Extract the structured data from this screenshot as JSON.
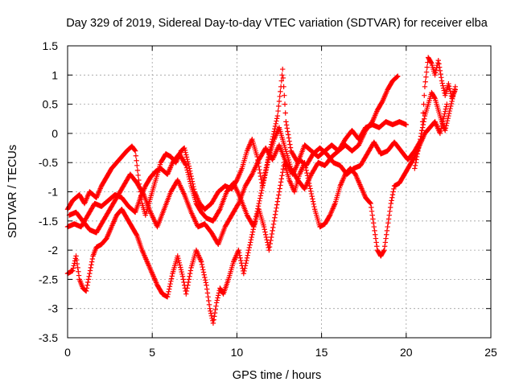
{
  "chart_data": {
    "type": "scatter",
    "title": "Day 329 of 2019, Sidereal Day-to-day VTEC variation (SDTVAR) for receiver elba",
    "xlabel": "GPS time / hours",
    "ylabel": "SDTVAR / TECUs",
    "xlim": [
      0,
      25
    ],
    "ylim": [
      -3.5,
      1.5
    ],
    "xticks": [
      0,
      5,
      10,
      15,
      20,
      25
    ],
    "xtick_labels": [
      "0",
      "5",
      "10",
      "15",
      "20",
      "25"
    ],
    "yticks": [
      -3.5,
      -3,
      -2.5,
      -2,
      -1.5,
      -1,
      -0.5,
      0,
      0.5,
      1,
      1.5
    ],
    "ytick_labels": [
      "-3.5",
      "-3",
      "-2.5",
      "-2",
      "-1.5",
      "-1",
      "-0.5",
      "0",
      "0.5",
      "1",
      "1.5"
    ],
    "grid": true,
    "marker": "+",
    "marker_color": "#ff0000",
    "series": [
      {
        "points": [
          [
            0.0,
            -1.3
          ],
          [
            0.3,
            -1.15
          ],
          [
            0.7,
            -1.05
          ],
          [
            1.0,
            -1.2
          ],
          [
            1.3,
            -1.0
          ],
          [
            1.7,
            -1.1
          ],
          [
            2.0,
            -0.9
          ],
          [
            2.3,
            -0.75
          ],
          [
            2.6,
            -0.6
          ],
          [
            2.9,
            -0.5
          ],
          [
            3.2,
            -0.4
          ],
          [
            3.5,
            -0.3
          ],
          [
            3.8,
            -0.22
          ],
          [
            4.0,
            -0.3
          ],
          [
            4.2,
            -0.8
          ],
          [
            4.4,
            -1.2
          ],
          [
            4.6,
            -1.4
          ],
          [
            4.9,
            -1.1
          ],
          [
            5.2,
            -0.8
          ],
          [
            5.5,
            -0.5
          ],
          [
            5.8,
            -0.35
          ],
          [
            6.1,
            -0.4
          ],
          [
            6.4,
            -0.5
          ],
          [
            6.7,
            -0.3
          ],
          [
            6.9,
            -0.25
          ],
          [
            7.2,
            -0.6
          ],
          [
            7.5,
            -1.0
          ],
          [
            7.8,
            -1.2
          ],
          [
            8.1,
            -1.3
          ],
          [
            8.5,
            -1.2
          ],
          [
            8.9,
            -1.0
          ],
          [
            9.3,
            -0.9
          ],
          [
            9.7,
            -0.95
          ],
          [
            10.0,
            -0.8
          ],
          [
            10.3,
            -0.6
          ],
          [
            10.6,
            -0.3
          ],
          [
            10.9,
            -0.1
          ],
          [
            11.2,
            -0.4
          ],
          [
            11.5,
            -0.9
          ],
          [
            11.8,
            -0.5
          ],
          [
            12.1,
            -0.1
          ],
          [
            12.4,
            0.3
          ],
          [
            12.6,
            0.8
          ],
          [
            12.7,
            1.1
          ],
          [
            12.9,
            0.2
          ],
          [
            13.2,
            -0.3
          ],
          [
            13.6,
            -0.5
          ],
          [
            14.0,
            -0.2
          ],
          [
            14.4,
            -0.3
          ],
          [
            14.8,
            -0.4
          ],
          [
            15.2,
            -0.3
          ],
          [
            15.6,
            -0.2
          ],
          [
            16.0,
            -0.3
          ],
          [
            16.4,
            -0.1
          ],
          [
            16.8,
            0.05
          ],
          [
            17.2,
            -0.1
          ],
          [
            17.6,
            0.1
          ],
          [
            18.0,
            0.15
          ],
          [
            18.4,
            0.1
          ],
          [
            18.8,
            0.2
          ],
          [
            19.2,
            0.15
          ],
          [
            19.6,
            0.2
          ],
          [
            20.0,
            0.15
          ]
        ]
      },
      {
        "points": [
          [
            0.0,
            -1.6
          ],
          [
            0.4,
            -1.55
          ],
          [
            0.8,
            -1.6
          ],
          [
            1.2,
            -1.4
          ],
          [
            1.6,
            -1.2
          ],
          [
            2.0,
            -1.25
          ],
          [
            2.4,
            -1.15
          ],
          [
            2.8,
            -1.05
          ],
          [
            3.2,
            -1.1
          ],
          [
            3.6,
            -1.25
          ],
          [
            4.0,
            -1.35
          ],
          [
            4.3,
            -1.1
          ],
          [
            4.6,
            -0.9
          ],
          [
            4.9,
            -0.75
          ],
          [
            5.2,
            -0.65
          ],
          [
            5.5,
            -0.6
          ],
          [
            5.9,
            -0.7
          ],
          [
            6.2,
            -0.5
          ],
          [
            6.6,
            -0.35
          ],
          [
            7.0,
            -0.55
          ],
          [
            7.3,
            -0.9
          ],
          [
            7.6,
            -1.2
          ],
          [
            7.9,
            -1.35
          ],
          [
            8.2,
            -1.45
          ],
          [
            8.6,
            -1.5
          ],
          [
            9.0,
            -1.3
          ],
          [
            9.4,
            -1.0
          ],
          [
            9.8,
            -0.85
          ],
          [
            10.2,
            -1.1
          ],
          [
            10.6,
            -1.4
          ],
          [
            11.0,
            -1.6
          ],
          [
            11.3,
            -1.2
          ],
          [
            11.6,
            -0.8
          ],
          [
            11.9,
            -0.4
          ],
          [
            12.2,
            -0.1
          ],
          [
            12.5,
            0.1
          ],
          [
            12.8,
            -0.2
          ],
          [
            13.2,
            -0.6
          ],
          [
            13.6,
            -0.8
          ],
          [
            14.0,
            -0.95
          ],
          [
            14.4,
            -0.7
          ],
          [
            14.8,
            -0.5
          ],
          [
            15.2,
            -0.55
          ],
          [
            15.6,
            -0.4
          ],
          [
            16.0,
            -0.3
          ],
          [
            16.4,
            -0.2
          ],
          [
            16.8,
            -0.3
          ],
          [
            17.2,
            -0.2
          ],
          [
            17.6,
            0.05
          ],
          [
            18.0,
            0.2
          ],
          [
            18.3,
            0.4
          ],
          [
            18.6,
            0.55
          ],
          [
            18.9,
            0.75
          ],
          [
            19.2,
            0.9
          ],
          [
            19.5,
            0.98
          ]
        ]
      },
      {
        "points": [
          [
            0.0,
            -2.4
          ],
          [
            0.3,
            -2.35
          ],
          [
            0.5,
            -2.1
          ],
          [
            0.7,
            -2.5
          ],
          [
            0.9,
            -2.65
          ],
          [
            1.1,
            -2.7
          ],
          [
            1.3,
            -2.4
          ],
          [
            1.5,
            -2.1
          ],
          [
            1.7,
            -1.95
          ],
          [
            2.0,
            -1.9
          ],
          [
            2.3,
            -1.8
          ],
          [
            2.6,
            -1.6
          ],
          [
            2.9,
            -1.4
          ],
          [
            3.2,
            -1.3
          ],
          [
            3.5,
            -1.45
          ],
          [
            3.8,
            -1.6
          ],
          [
            4.1,
            -1.75
          ],
          [
            4.4,
            -2.0
          ],
          [
            4.7,
            -2.2
          ],
          [
            5.0,
            -2.4
          ],
          [
            5.3,
            -2.6
          ],
          [
            5.6,
            -2.75
          ],
          [
            5.9,
            -2.8
          ],
          [
            6.2,
            -2.4
          ],
          [
            6.5,
            -2.1
          ],
          [
            6.8,
            -2.45
          ],
          [
            7.0,
            -2.75
          ],
          [
            7.3,
            -2.3
          ],
          [
            7.6,
            -2.0
          ],
          [
            7.9,
            -2.2
          ],
          [
            8.2,
            -2.6
          ],
          [
            8.4,
            -3.0
          ],
          [
            8.6,
            -3.25
          ],
          [
            8.8,
            -2.9
          ],
          [
            9.0,
            -2.65
          ],
          [
            9.2,
            -2.75
          ],
          [
            9.5,
            -2.5
          ],
          [
            9.8,
            -2.2
          ],
          [
            10.1,
            -2.0
          ],
          [
            10.4,
            -2.4
          ],
          [
            10.7,
            -2.0
          ],
          [
            11.0,
            -1.6
          ],
          [
            11.3,
            -1.3
          ],
          [
            11.6,
            -1.6
          ],
          [
            11.9,
            -2.0
          ],
          [
            12.2,
            -1.5
          ],
          [
            12.5,
            -1.0
          ],
          [
            12.8,
            -0.5
          ],
          [
            13.1,
            -0.8
          ],
          [
            13.4,
            -1.0
          ],
          [
            13.7,
            -0.7
          ],
          [
            14.0,
            -0.5
          ],
          [
            14.3,
            -0.9
          ],
          [
            14.6,
            -1.3
          ],
          [
            14.9,
            -1.6
          ],
          [
            15.2,
            -1.55
          ],
          [
            15.5,
            -1.4
          ],
          [
            15.8,
            -1.2
          ],
          [
            16.1,
            -0.9
          ],
          [
            16.4,
            -0.7
          ],
          [
            16.7,
            -0.6
          ],
          [
            17.0,
            -0.7
          ],
          [
            17.3,
            -0.9
          ],
          [
            17.6,
            -1.1
          ],
          [
            17.9,
            -1.2
          ],
          [
            18.1,
            -1.6
          ],
          [
            18.3,
            -2.0
          ],
          [
            18.5,
            -2.1
          ],
          [
            18.7,
            -2.0
          ],
          [
            18.9,
            -1.6
          ],
          [
            19.1,
            -1.2
          ],
          [
            19.3,
            -0.9
          ],
          [
            19.6,
            -0.85
          ],
          [
            19.9,
            -0.7
          ],
          [
            20.2,
            -0.55
          ],
          [
            20.5,
            -0.4
          ],
          [
            20.8,
            -0.2
          ],
          [
            21.1,
            0.0
          ],
          [
            21.4,
            0.1
          ],
          [
            21.7,
            0.2
          ],
          [
            22.0,
            0.0
          ],
          [
            22.2,
            0.25
          ],
          [
            22.4,
            0.5
          ]
        ]
      },
      {
        "points": [
          [
            0.1,
            -1.4
          ],
          [
            0.5,
            -1.35
          ],
          [
            0.9,
            -1.5
          ],
          [
            1.3,
            -1.65
          ],
          [
            1.7,
            -1.7
          ],
          [
            2.1,
            -1.5
          ],
          [
            2.5,
            -1.3
          ],
          [
            2.9,
            -1.1
          ],
          [
            3.3,
            -0.9
          ],
          [
            3.7,
            -0.7
          ],
          [
            4.1,
            -0.85
          ],
          [
            4.5,
            -1.05
          ],
          [
            4.9,
            -1.35
          ],
          [
            5.3,
            -1.6
          ],
          [
            5.7,
            -1.3
          ],
          [
            6.1,
            -1.0
          ],
          [
            6.5,
            -0.8
          ],
          [
            6.9,
            -1.05
          ],
          [
            7.3,
            -1.35
          ],
          [
            7.7,
            -1.6
          ],
          [
            8.1,
            -1.55
          ],
          [
            8.5,
            -1.7
          ],
          [
            8.9,
            -1.9
          ],
          [
            9.3,
            -1.6
          ],
          [
            9.7,
            -1.4
          ],
          [
            10.1,
            -1.2
          ],
          [
            10.5,
            -0.9
          ],
          [
            10.9,
            -0.7
          ],
          [
            11.3,
            -0.45
          ],
          [
            11.7,
            -0.25
          ],
          [
            12.1,
            -0.45
          ],
          [
            12.5,
            -0.2
          ],
          [
            12.9,
            -0.5
          ],
          [
            13.3,
            -0.7
          ],
          [
            13.7,
            -0.45
          ],
          [
            14.1,
            -0.55
          ],
          [
            14.5,
            -0.35
          ],
          [
            14.9,
            -0.25
          ],
          [
            15.3,
            -0.35
          ],
          [
            15.7,
            -0.5
          ],
          [
            16.1,
            -0.55
          ],
          [
            16.5,
            -0.7
          ],
          [
            16.9,
            -0.6
          ],
          [
            17.3,
            -0.55
          ],
          [
            17.7,
            -0.35
          ],
          [
            18.1,
            -0.15
          ],
          [
            18.5,
            -0.35
          ],
          [
            18.9,
            -0.3
          ],
          [
            19.3,
            -0.15
          ],
          [
            19.7,
            -0.3
          ],
          [
            20.1,
            -0.45
          ],
          [
            20.5,
            -0.3
          ],
          [
            20.9,
            -0.1
          ],
          [
            21.1,
            0.8
          ],
          [
            21.3,
            1.3
          ],
          [
            21.5,
            1.2
          ],
          [
            21.7,
            1.0
          ],
          [
            21.9,
            1.25
          ],
          [
            22.1,
            0.9
          ],
          [
            22.3,
            0.65
          ],
          [
            22.5,
            0.85
          ],
          [
            22.7,
            0.6
          ],
          [
            22.9,
            0.75
          ]
        ]
      },
      {
        "points": [
          [
            20.5,
            -0.6
          ],
          [
            20.7,
            -0.3
          ],
          [
            20.9,
            0.0
          ],
          [
            21.1,
            0.3
          ],
          [
            21.3,
            0.5
          ],
          [
            21.5,
            0.7
          ],
          [
            21.7,
            0.6
          ],
          [
            21.9,
            0.4
          ],
          [
            22.1,
            0.2
          ],
          [
            22.3,
            0.05
          ],
          [
            22.5,
            0.3
          ],
          [
            22.7,
            0.55
          ],
          [
            22.9,
            0.8
          ]
        ]
      }
    ]
  }
}
